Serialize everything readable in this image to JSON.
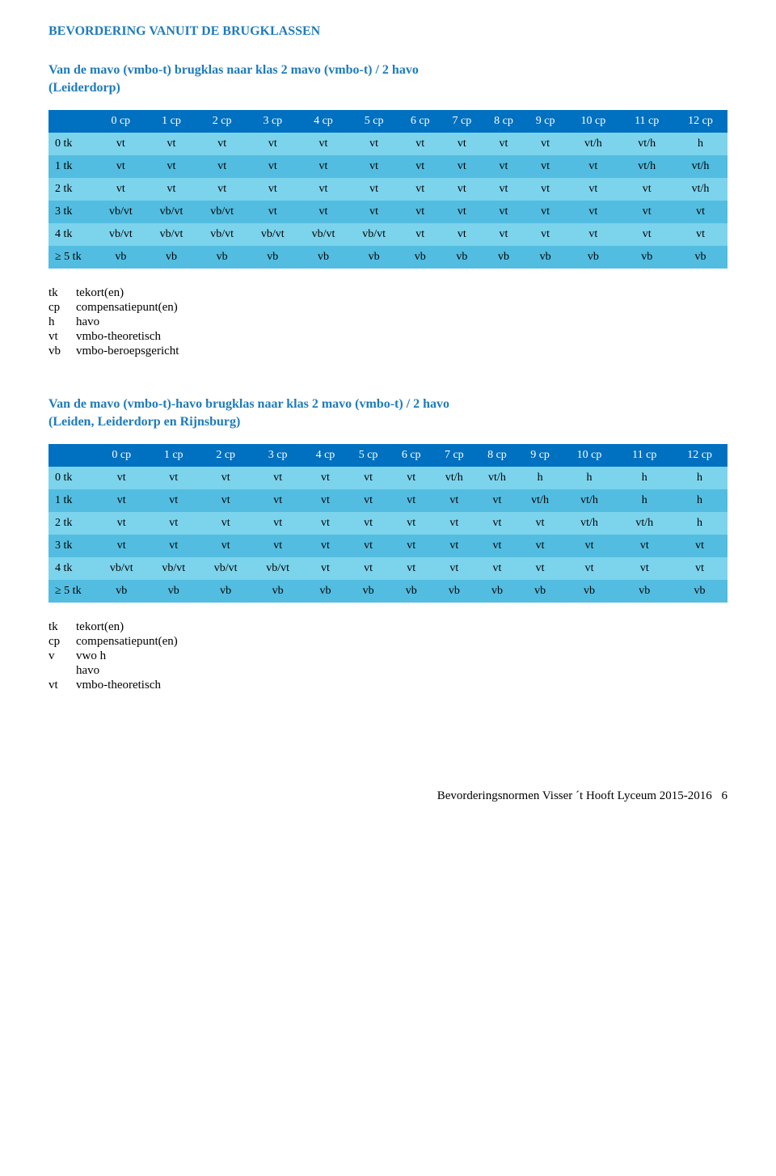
{
  "colors": {
    "blue_text": "#1e7bba",
    "header_bg": "#0070c0",
    "header_text": "#ffffff",
    "row_light": "#7cd3ec",
    "row_dark": "#52bde0"
  },
  "section_title": "BEVORDERING VANUIT DE BRUGKLASSEN",
  "table1": {
    "title": "Van de mavo (vmbo-t) brugklas naar klas 2 mavo (vmbo-t) / 2 havo",
    "paren": "(Leiderdorp)",
    "headers": [
      "",
      "0 cp",
      "1 cp",
      "2 cp",
      "3 cp",
      "4 cp",
      "5 cp",
      "6 cp",
      "7 cp",
      "8 cp",
      "9 cp",
      "10 cp",
      "11 cp",
      "12 cp"
    ],
    "rows": [
      {
        "label": "0 tk",
        "cells": [
          "vt",
          "vt",
          "vt",
          "vt",
          "vt",
          "vt",
          "vt",
          "vt",
          "vt",
          "vt",
          "vt/h",
          "vt/h",
          "h"
        ]
      },
      {
        "label": "1 tk",
        "cells": [
          "vt",
          "vt",
          "vt",
          "vt",
          "vt",
          "vt",
          "vt",
          "vt",
          "vt",
          "vt",
          "vt",
          "vt/h",
          "vt/h"
        ]
      },
      {
        "label": "2 tk",
        "cells": [
          "vt",
          "vt",
          "vt",
          "vt",
          "vt",
          "vt",
          "vt",
          "vt",
          "vt",
          "vt",
          "vt",
          "vt",
          "vt/h"
        ]
      },
      {
        "label": "3 tk",
        "cells": [
          "vb/vt",
          "vb/vt",
          "vb/vt",
          "vt",
          "vt",
          "vt",
          "vt",
          "vt",
          "vt",
          "vt",
          "vt",
          "vt",
          "vt"
        ]
      },
      {
        "label": "4 tk",
        "cells": [
          "vb/vt",
          "vb/vt",
          "vb/vt",
          "vb/vt",
          "vb/vt",
          "vb/vt",
          "vt",
          "vt",
          "vt",
          "vt",
          "vt",
          "vt",
          "vt"
        ]
      },
      {
        "label": "≥ 5 tk",
        "cells": [
          "vb",
          "vb",
          "vb",
          "vb",
          "vb",
          "vb",
          "vb",
          "vb",
          "vb",
          "vb",
          "vb",
          "vb",
          "vb"
        ]
      }
    ]
  },
  "legend1": [
    {
      "k": "tk",
      "v": "tekort(en)"
    },
    {
      "k": "cp",
      "v": "compensatiepunt(en)"
    },
    {
      "k": "h",
      "v": "havo"
    },
    {
      "k": "vt",
      "v": "vmbo-theoretisch"
    },
    {
      "k": "vb",
      "v": "vmbo-beroepsgericht"
    }
  ],
  "table2": {
    "title": "Van de mavo (vmbo-t)-havo brugklas naar klas 2 mavo (vmbo-t) / 2 havo",
    "paren": "(Leiden, Leiderdorp en Rijnsburg)",
    "headers": [
      "",
      "0 cp",
      "1 cp",
      "2 cp",
      "3 cp",
      "4 cp",
      "5 cp",
      "6 cp",
      "7 cp",
      "8 cp",
      "9 cp",
      "10 cp",
      "11 cp",
      "12 cp"
    ],
    "rows": [
      {
        "label": "0 tk",
        "cells": [
          "vt",
          "vt",
          "vt",
          "vt",
          "vt",
          "vt",
          "vt",
          "vt/h",
          "vt/h",
          "h",
          "h",
          "h",
          "h"
        ]
      },
      {
        "label": "1 tk",
        "cells": [
          "vt",
          "vt",
          "vt",
          "vt",
          "vt",
          "vt",
          "vt",
          "vt",
          "vt",
          "vt/h",
          "vt/h",
          "h",
          "h"
        ]
      },
      {
        "label": "2 tk",
        "cells": [
          "vt",
          "vt",
          "vt",
          "vt",
          "vt",
          "vt",
          "vt",
          "vt",
          "vt",
          "vt",
          "vt/h",
          "vt/h",
          "h"
        ]
      },
      {
        "label": "3 tk",
        "cells": [
          "vt",
          "vt",
          "vt",
          "vt",
          "vt",
          "vt",
          "vt",
          "vt",
          "vt",
          "vt",
          "vt",
          "vt",
          "vt"
        ]
      },
      {
        "label": "4 tk",
        "cells": [
          "vb/vt",
          "vb/vt",
          "vb/vt",
          "vb/vt",
          "vt",
          "vt",
          "vt",
          "vt",
          "vt",
          "vt",
          "vt",
          "vt",
          "vt"
        ]
      },
      {
        "label": "≥ 5 tk",
        "cells": [
          "vb",
          "vb",
          "vb",
          "vb",
          "vb",
          "vb",
          "vb",
          "vb",
          "vb",
          "vb",
          "vb",
          "vb",
          "vb"
        ]
      }
    ]
  },
  "legend2": [
    {
      "k": "tk",
      "v": "tekort(en)"
    },
    {
      "k": "cp",
      "v": "compensatiepunt(en)"
    },
    {
      "k": "v",
      "v": "vwo h"
    },
    {
      "k": "",
      "v": "havo"
    },
    {
      "k": "vt",
      "v": "vmbo-theoretisch"
    }
  ],
  "footer": {
    "text": "Bevorderingsnormen Visser ´t Hooft Lyceum 2015-2016",
    "page": "6"
  }
}
